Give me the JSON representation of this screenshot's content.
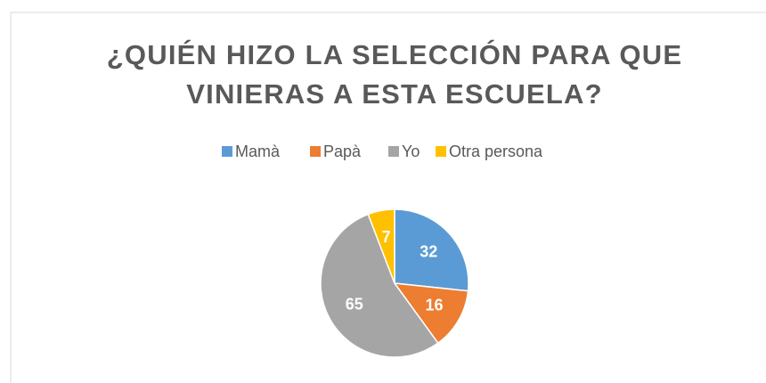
{
  "chart_data": {
    "type": "pie",
    "title": "¿QUIÉN HIZO LA SELECCIÓN PARA QUE VINIERAS A ESTA ESCUELA?",
    "categories": [
      "Mamà",
      "Papà",
      "Yo",
      "Otra persona"
    ],
    "values": [
      32,
      16,
      65,
      7
    ],
    "colors": [
      "#5b9bd5",
      "#ed7d31",
      "#a5a5a5",
      "#ffc000"
    ],
    "legend": "top"
  }
}
